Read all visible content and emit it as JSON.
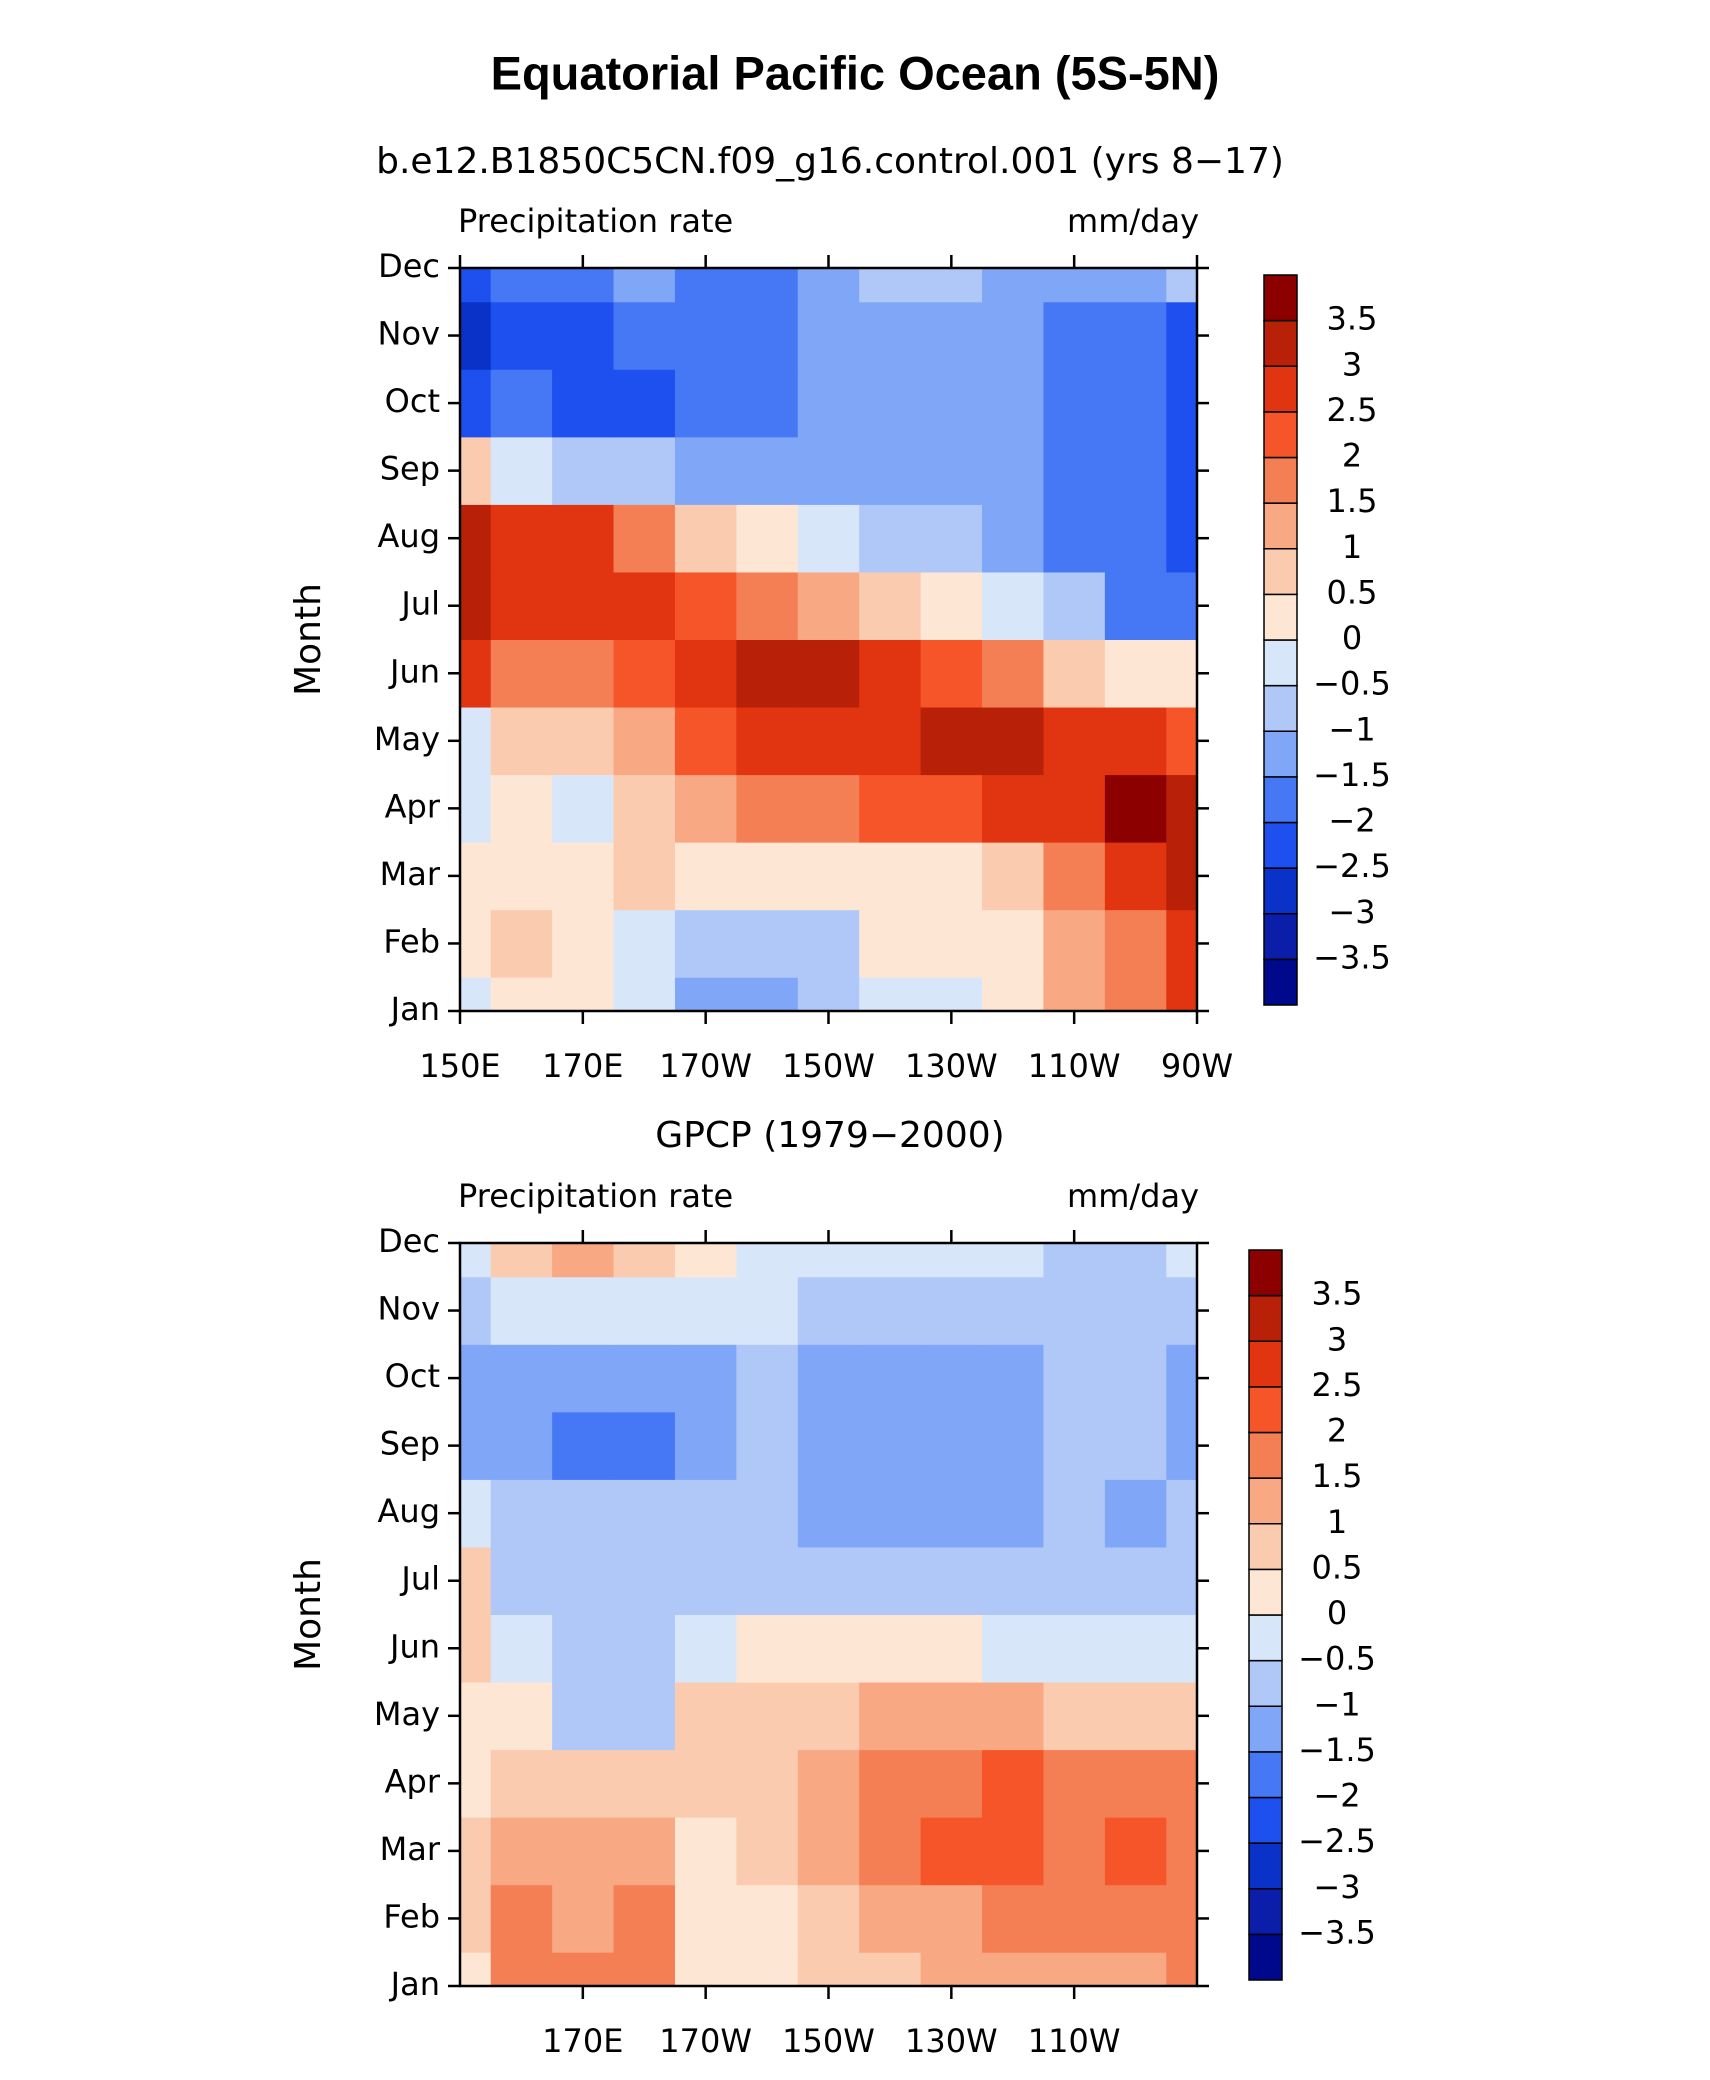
{
  "title": "Equatorial Pacific Ocean (5S-5N)",
  "chart_data": [
    {
      "type": "contour",
      "title": "b.e12.B1850C5CN.f09_g16.control.001 (yrs 8−17)",
      "left_label": "Precipitation rate",
      "right_label": "mm/day",
      "ylabel": "Month",
      "categories": [
        "Jan",
        "Feb",
        "Mar",
        "Apr",
        "May",
        "Jun",
        "Jul",
        "Aug",
        "Sep",
        "Oct",
        "Nov",
        "Dec"
      ],
      "xlim": [
        150,
        270
      ],
      "xticks": [
        {
          "value": 150,
          "label": "150E"
        },
        {
          "value": 170,
          "label": "170E"
        },
        {
          "value": 190,
          "label": "170W"
        },
        {
          "value": 210,
          "label": "150W"
        },
        {
          "value": 230,
          "label": "130W"
        },
        {
          "value": 250,
          "label": "110W"
        },
        {
          "value": 270,
          "label": "90W"
        }
      ],
      "x": [
        150,
        160,
        170,
        180,
        190,
        200,
        210,
        220,
        230,
        240,
        250,
        260,
        270
      ],
      "values": [
        [
          -0.3,
          0.3,
          0.3,
          -0.3,
          -1.2,
          -1.2,
          -0.8,
          -0.5,
          -0.3,
          0.3,
          1.2,
          1.8,
          2.6
        ],
        [
          0.2,
          0.8,
          0.3,
          -0.3,
          -0.7,
          -1.0,
          -0.7,
          0.1,
          0.3,
          0.3,
          1.2,
          1.8,
          2.5
        ],
        [
          0.3,
          0.3,
          0.4,
          0.6,
          0.3,
          0.3,
          0.3,
          0.3,
          0.4,
          0.8,
          1.7,
          2.5,
          3.0
        ],
        [
          -0.4,
          0.4,
          -0.3,
          0.6,
          1.2,
          1.5,
          1.8,
          2.0,
          2.2,
          2.5,
          2.8,
          3.6,
          3.2
        ],
        [
          -0.3,
          0.5,
          0.8,
          1.3,
          2.0,
          2.6,
          2.8,
          2.9,
          3.2,
          3.1,
          2.8,
          2.6,
          2.2
        ],
        [
          2.6,
          1.5,
          1.6,
          2.2,
          2.8,
          3.2,
          3.0,
          2.5,
          2.0,
          1.5,
          0.9,
          0.4,
          0.0
        ],
        [
          3.0,
          2.5,
          2.8,
          2.9,
          2.4,
          1.6,
          1.0,
          0.5,
          0.0,
          -0.5,
          -1.0,
          -1.6,
          -2.0
        ],
        [
          3.4,
          2.8,
          2.5,
          1.6,
          0.8,
          0.2,
          -0.3,
          -0.6,
          -0.9,
          -1.2,
          -1.6,
          -2.0,
          -2.2
        ],
        [
          0.5,
          -0.3,
          -0.8,
          -1.0,
          -1.2,
          -1.5,
          -1.3,
          -1.2,
          -1.2,
          -1.3,
          -1.6,
          -2.0,
          -2.3
        ],
        [
          -2.2,
          -2.0,
          -2.4,
          -2.2,
          -1.8,
          -1.7,
          -1.3,
          -1.2,
          -1.2,
          -1.3,
          -1.6,
          -2.0,
          -2.3
        ],
        [
          -2.6,
          -2.2,
          -2.1,
          -1.9,
          -1.7,
          -1.6,
          -1.2,
          -1.1,
          -1.2,
          -1.4,
          -1.7,
          -2.0,
          -2.2
        ],
        [
          -2.2,
          -1.9,
          -1.7,
          -1.5,
          -1.8,
          -1.6,
          -1.2,
          -0.8,
          -1.0,
          -1.1,
          -1.3,
          -1.3,
          -1.0
        ]
      ],
      "levels": [
        {
          "value": -3.5,
          "label": "−3.5"
        },
        {
          "value": -3,
          "label": "−3"
        },
        {
          "value": -2.5,
          "label": "−2.5"
        },
        {
          "value": -2,
          "label": "−2"
        },
        {
          "value": -1.5,
          "label": "−1.5"
        },
        {
          "value": -1,
          "label": "−1"
        },
        {
          "value": -0.5,
          "label": "−0.5"
        },
        0,
        0.5,
        1,
        1.5,
        2,
        2.5,
        3,
        3.5
      ],
      "colors": [
        "#00088c",
        "#0a1eaa",
        "#0a32c8",
        "#1e50f0",
        "#4678f5",
        "#80a6f8",
        "#b0c8f8",
        "#d8e6fa",
        "#fde6d4",
        "#fbcbb0",
        "#f8a883",
        "#f57f55",
        "#f55528",
        "#e03510",
        "#b82008",
        "#8c0000"
      ]
    },
    {
      "type": "contour",
      "title": "GPCP (1979−2000)",
      "left_label": "Precipitation rate",
      "right_label": "mm/day",
      "ylabel": "Month",
      "categories": [
        "Jan",
        "Feb",
        "Mar",
        "Apr",
        "May",
        "Jun",
        "Jul",
        "Aug",
        "Sep",
        "Oct",
        "Nov",
        "Dec"
      ],
      "xlim": [
        150,
        270
      ],
      "xticks": [
        {
          "value": 170,
          "label": "170E"
        },
        {
          "value": 190,
          "label": "170W"
        },
        {
          "value": 210,
          "label": "150W"
        },
        {
          "value": 230,
          "label": "130W"
        },
        {
          "value": 250,
          "label": "110W"
        }
      ],
      "x": [
        150,
        160,
        170,
        180,
        190,
        200,
        210,
        220,
        230,
        240,
        250,
        260,
        270
      ],
      "values": [
        [
          0.4,
          1.5,
          1.6,
          1.8,
          0.3,
          0.2,
          0.6,
          0.9,
          1.0,
          1.3,
          1.2,
          1.4,
          1.8
        ],
        [
          0.6,
          1.6,
          1.2,
          1.5,
          0.3,
          0.4,
          0.8,
          1.2,
          1.3,
          1.6,
          1.5,
          1.6,
          1.8
        ],
        [
          0.7,
          1.3,
          1.2,
          1.2,
          0.4,
          0.6,
          1.2,
          1.6,
          2.1,
          2.3,
          1.8,
          2.3,
          1.8
        ],
        [
          0.3,
          0.8,
          0.7,
          0.7,
          0.8,
          0.8,
          1.1,
          1.6,
          1.7,
          2.1,
          1.7,
          1.8,
          1.5
        ],
        [
          0.2,
          0.0,
          -0.7,
          -0.8,
          0.5,
          0.6,
          0.8,
          1.0,
          1.1,
          1.0,
          0.9,
          0.8,
          0.7
        ],
        [
          0.7,
          -0.4,
          -0.7,
          -0.6,
          -0.3,
          0.2,
          0.3,
          0.2,
          0.1,
          -0.3,
          -0.4,
          -0.3,
          -0.2
        ],
        [
          0.5,
          -0.8,
          -0.8,
          -0.8,
          -0.7,
          -0.6,
          -0.7,
          -0.8,
          -0.8,
          -0.8,
          -0.9,
          -1.0,
          -0.9
        ],
        [
          -0.3,
          -0.6,
          -0.9,
          -0.8,
          -0.8,
          -0.9,
          -1.2,
          -1.2,
          -1.2,
          -1.2,
          -0.9,
          -1.2,
          -1.0
        ],
        [
          -1.1,
          -1.3,
          -1.7,
          -1.8,
          -1.2,
          -1.0,
          -1.2,
          -1.3,
          -1.4,
          -1.3,
          -0.8,
          -0.9,
          -1.2
        ],
        [
          -1.3,
          -1.1,
          -1.4,
          -1.5,
          -1.1,
          -0.8,
          -1.2,
          -1.3,
          -1.3,
          -1.2,
          -0.8,
          -0.9,
          -1.2
        ],
        [
          -0.8,
          -0.5,
          -0.4,
          -0.3,
          -0.3,
          -0.4,
          -0.6,
          -0.7,
          -0.7,
          -0.7,
          -0.8,
          -0.8,
          -0.9
        ],
        [
          -0.3,
          0.6,
          1.0,
          0.7,
          0.3,
          -0.3,
          -0.4,
          -0.5,
          -0.5,
          -0.5,
          -0.6,
          -0.6,
          -0.5
        ]
      ],
      "levels": [
        {
          "value": -3.5,
          "label": "−3.5"
        },
        {
          "value": -3,
          "label": "−3"
        },
        {
          "value": -2.5,
          "label": "−2.5"
        },
        {
          "value": -2,
          "label": "−2"
        },
        {
          "value": -1.5,
          "label": "−1.5"
        },
        {
          "value": -1,
          "label": "−1"
        },
        {
          "value": -0.5,
          "label": "−0.5"
        },
        0,
        0.5,
        1,
        1.5,
        2,
        2.5,
        3,
        3.5
      ],
      "colors": [
        "#00088c",
        "#0a1eaa",
        "#0a32c8",
        "#1e50f0",
        "#4678f5",
        "#80a6f8",
        "#b0c8f8",
        "#d8e6fa",
        "#fde6d4",
        "#fbcbb0",
        "#f8a883",
        "#f57f55",
        "#f55528",
        "#e03510",
        "#b82008",
        "#8c0000"
      ]
    }
  ]
}
